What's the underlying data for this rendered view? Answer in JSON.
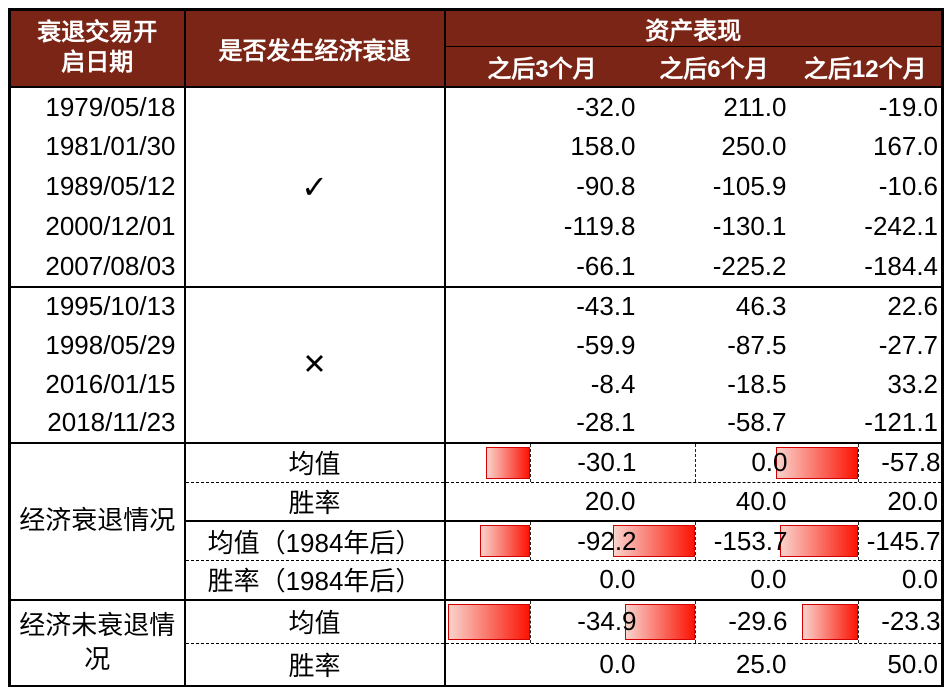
{
  "chart_data": {
    "type": "table",
    "header": {
      "col_date": "衰退交易开启日期",
      "col_recession": "是否发生经济衰退",
      "assets_group": "资产表现",
      "col_m3": "之后3个月",
      "col_m6": "之后6个月",
      "col_m12": "之后12个月"
    },
    "recession_yes": {
      "mark": "✓",
      "rows": [
        {
          "date": "1979/05/18",
          "m3": "-32.0",
          "m6": "211.0",
          "m12": "-19.0"
        },
        {
          "date": "1981/01/30",
          "m3": "158.0",
          "m6": "250.0",
          "m12": "167.0"
        },
        {
          "date": "1989/05/12",
          "m3": "-90.8",
          "m6": "-105.9",
          "m12": "-10.6"
        },
        {
          "date": "2000/12/01",
          "m3": "-119.8",
          "m6": "-130.1",
          "m12": "-242.1"
        },
        {
          "date": "2007/08/03",
          "m3": "-66.1",
          "m6": "-225.2",
          "m12": "-184.4"
        }
      ]
    },
    "recession_no": {
      "mark": "✕",
      "rows": [
        {
          "date": "1995/10/13",
          "m3": "-43.1",
          "m6": "46.3",
          "m12": "22.6"
        },
        {
          "date": "1998/05/29",
          "m3": "-59.9",
          "m6": "-87.5",
          "m12": "-27.7"
        },
        {
          "date": "2016/01/15",
          "m3": "-8.4",
          "m6": "-18.5",
          "m12": "33.2"
        },
        {
          "date": "2018/11/23",
          "m3": "-28.1",
          "m6": "-58.7",
          "m12": "-121.1"
        }
      ]
    },
    "summary_recession": {
      "group_label": "经济衰退情况",
      "mean": {
        "label": "均值",
        "m3": "-30.1",
        "m6": "0.0",
        "m12": "-57.8"
      },
      "winrate": {
        "label": "胜率",
        "m3": "20.0",
        "m6": "40.0",
        "m12": "20.0"
      },
      "mean_post1984": {
        "label": "均值（1984年后）",
        "m3": "-92.2",
        "m6": "-153.7",
        "m12": "-145.7"
      },
      "winrate_post1984": {
        "label": "胜率（1984年后）",
        "m3": "0.0",
        "m6": "0.0",
        "m12": "0.0"
      }
    },
    "summary_no_recession": {
      "group_label": "经济未衰退情况",
      "mean": {
        "label": "均值",
        "m3": "-34.9",
        "m6": "-29.6",
        "m12": "-23.3"
      },
      "winrate": {
        "label": "胜率",
        "m3": "0.0",
        "m6": "25.0",
        "m12": "50.0"
      }
    },
    "colors": {
      "header_bg": "#7B2517",
      "bar_border": "#D40000",
      "bar_gradient_from": "#F9D3CC",
      "bar_gradient_to": "#FB1405"
    }
  }
}
